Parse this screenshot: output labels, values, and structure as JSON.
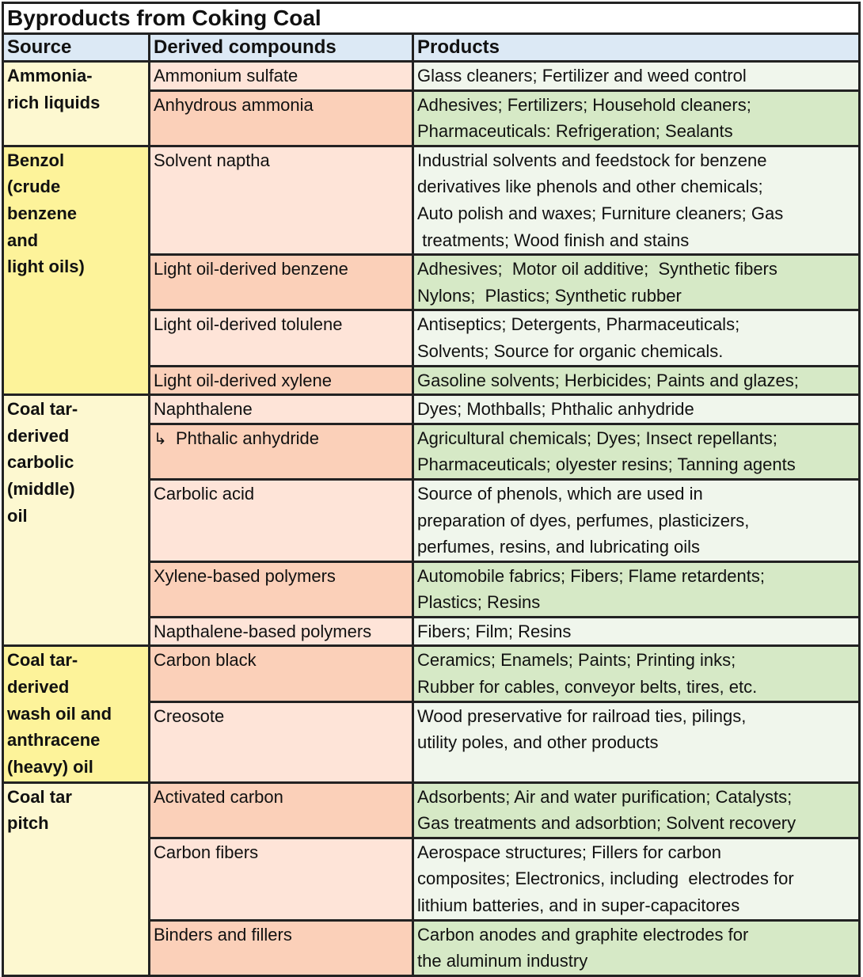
{
  "title": "Byproducts from Coking Coal",
  "headers": {
    "source": "Source",
    "compounds": "Derived compounds",
    "products": "Products"
  },
  "colors": {
    "header_bg": "#dce9f5",
    "source_light": "#fdf8d0",
    "source_dark": "#fdf39a",
    "compound_light": "#fee4d8",
    "compound_dark": "#fbd0b9",
    "product_light": "#f0f6ec",
    "product_dark": "#d6e9c6",
    "border": "#222222"
  },
  "groups": [
    {
      "source": [
        "Ammonia-",
        "rich liquids"
      ],
      "rows": [
        {
          "compound": "Ammonium sulfate",
          "products": [
            "Glass cleaners; Fertilizer and weed control"
          ]
        },
        {
          "compound": "Anhydrous ammonia",
          "products": [
            "Adhesives; Fertilizers; Household cleaners;",
            "Pharmaceuticals: Refrigeration; Sealants"
          ]
        }
      ]
    },
    {
      "source": [
        "Benzol",
        "(crude",
        "benzene",
        "and",
        "light oils)"
      ],
      "rows": [
        {
          "compound": "Solvent naptha",
          "products": [
            "Industrial solvents and feedstock for benzene",
            "derivatives like phenols and other chemicals;",
            "Auto polish and waxes; Furniture cleaners; Gas",
            " treatments; Wood finish and stains"
          ]
        },
        {
          "compound": "Light oil-derived benzene",
          "products": [
            "Adhesives;  Motor oil additive;  Synthetic fibers",
            "Nylons;  Plastics; Synthetic rubber"
          ]
        },
        {
          "compound": "Light oil-derived tolulene",
          "products": [
            "Antiseptics; Detergents, Pharmaceuticals;",
            "Solvents; Source for organic chemicals."
          ]
        },
        {
          "compound": "Light oil-derived xylene",
          "products": [
            "Gasoline solvents; Herbicides; Paints and glazes;"
          ]
        }
      ]
    },
    {
      "source": [
        "Coal tar-",
        "derived",
        "carbolic",
        "(middle)",
        "oil"
      ],
      "rows": [
        {
          "compound": "Naphthalene",
          "products": [
            "Dyes; Mothballs; Phthalic anhydride"
          ]
        },
        {
          "compound": "Phthalic anhydride",
          "sub_arrow": "↳",
          "products": [
            "Agricultural chemicals; Dyes; Insect repellants;",
            "Pharmaceuticals; olyester resins; Tanning agents"
          ]
        },
        {
          "compound": "Carbolic acid",
          "products": [
            "Source of phenols, which are used in",
            "preparation of dyes, perfumes, plasticizers,",
            "perfumes, resins, and lubricating oils"
          ]
        },
        {
          "compound": "Xylene-based polymers",
          "products": [
            "Automobile fabrics; Fibers; Flame retardents;",
            "Plastics; Resins"
          ]
        },
        {
          "compound": "Napthalene-based polymers",
          "products": [
            "Fibers; Film; Resins"
          ]
        }
      ]
    },
    {
      "source": [
        "Coal tar-",
        "derived",
        "wash oil and",
        "anthracene",
        "(heavy) oil"
      ],
      "rows": [
        {
          "compound": "Carbon black",
          "products": [
            "Ceramics; Enamels; Paints; Printing inks;",
            "Rubber for cables, conveyor belts, tires, etc."
          ]
        },
        {
          "compound": "Creosote",
          "products": [
            "Wood preservative for railroad ties, pilings,",
            "utility poles, and other products"
          ]
        }
      ]
    },
    {
      "source": [
        "Coal tar",
        "pitch"
      ],
      "rows": [
        {
          "compound": "Activated carbon",
          "products": [
            "Adsorbents; Air and water purification; Catalysts;",
            "Gas treatments and adsorbtion; Solvent recovery"
          ]
        },
        {
          "compound": "Carbon fibers",
          "products": [
            "Aerospace structures; Fillers for carbon",
            "composites; Electronics, including  electrodes for",
            "lithium batteries, and in super-capacitores"
          ]
        },
        {
          "compound": "Binders and fillers",
          "products": [
            "Carbon anodes and graphite electrodes for",
            "the aluminum industry"
          ]
        }
      ]
    }
  ]
}
